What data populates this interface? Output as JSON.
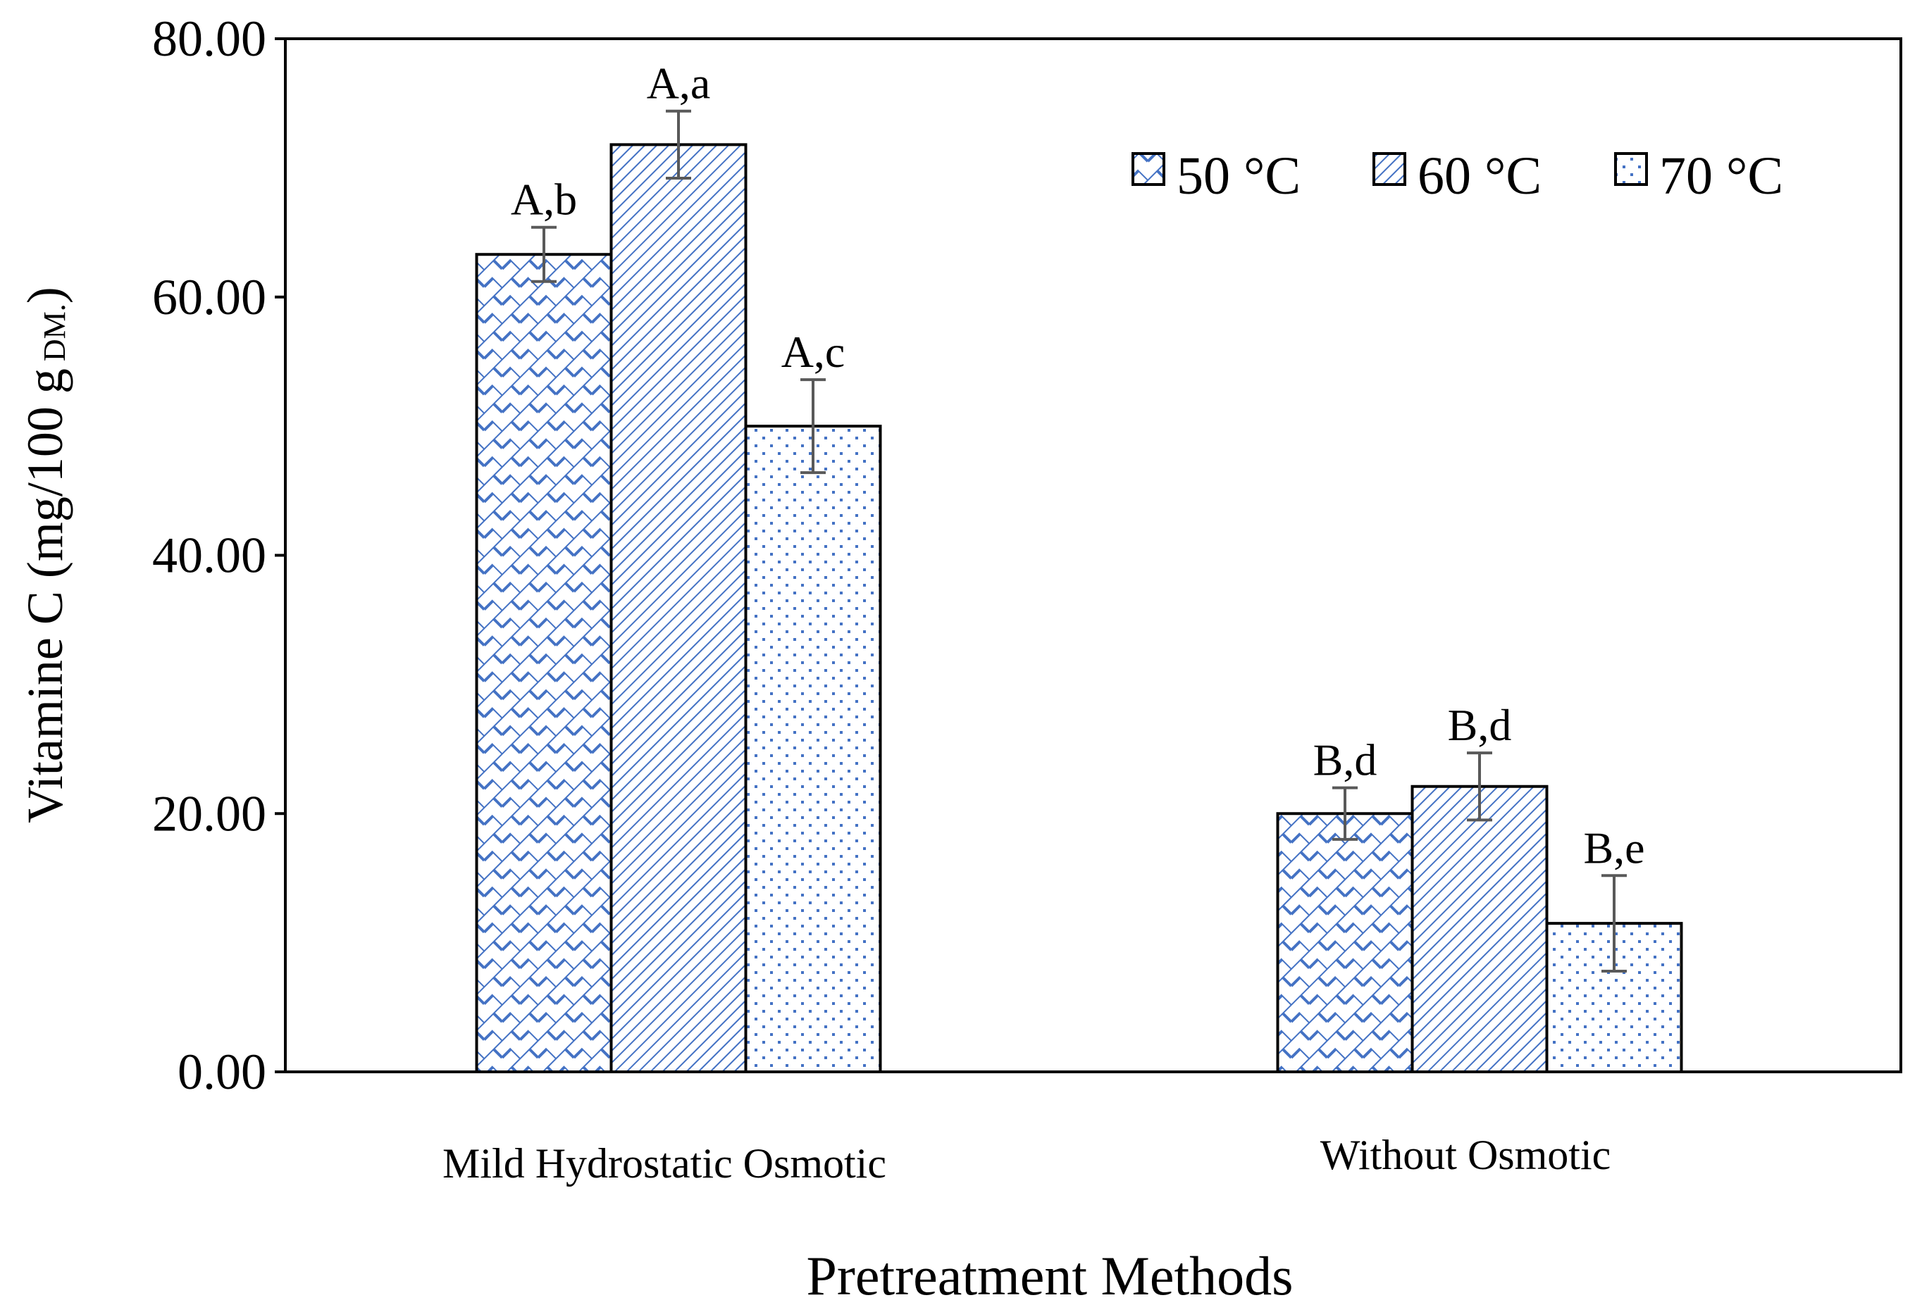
{
  "chart_data": {
    "type": "bar",
    "categories": [
      "Mild Hydrostatic Osmotic",
      "Without Osmotic"
    ],
    "series": [
      {
        "name": "50 °C",
        "values": [
          63.3,
          20.0
        ],
        "errors": [
          2.1,
          2.0
        ],
        "labels": [
          "A,b",
          "B,d"
        ],
        "pattern": "crosshatch"
      },
      {
        "name": "60 °C",
        "values": [
          71.8,
          22.1
        ],
        "errors": [
          2.6,
          2.6
        ],
        "labels": [
          "A,a",
          "B,d"
        ],
        "pattern": "diagonal"
      },
      {
        "name": "70 °C",
        "values": [
          50.0,
          11.5
        ],
        "errors": [
          3.6,
          3.7
        ],
        "labels": [
          "A,c",
          "B,e"
        ],
        "pattern": "dots"
      }
    ],
    "xlabel": "Pretreatment Methods",
    "ylabel": "Vitamine C (mg/100 g",
    "ylabel_sub": "DM.",
    "ylabel_close": ")",
    "ylim": [
      0,
      80
    ],
    "yticks": [
      "0.00",
      "20.00",
      "40.00",
      "60.00",
      "80.00"
    ],
    "ytick_values": [
      0,
      20,
      40,
      60,
      80
    ],
    "grid": false,
    "legend_position": "top-right"
  },
  "colors": {
    "pattern": "#4472c4",
    "error_bar": "#595959",
    "axis": "#000000"
  }
}
